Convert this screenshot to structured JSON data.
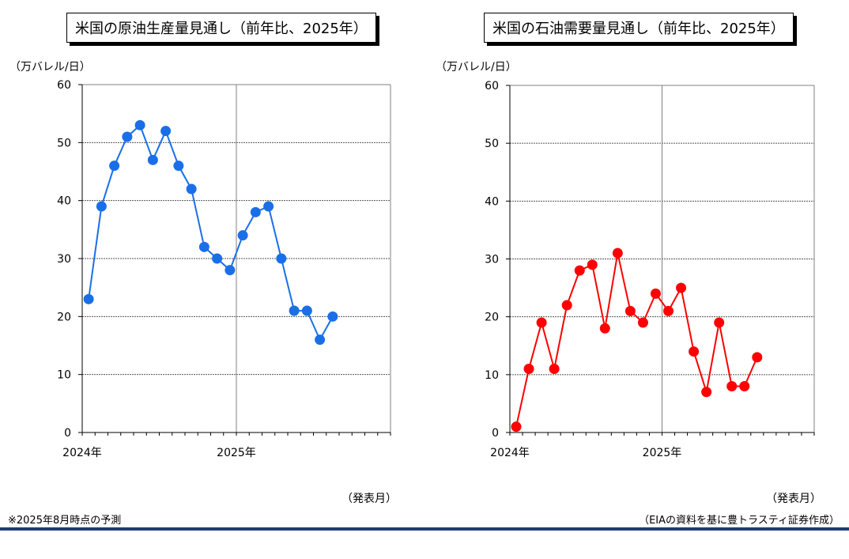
{
  "charts": [
    {
      "title": "米国の原油生産量見通し（前年比、2025年）",
      "unit": "（万バレル/日）",
      "publish_label": "（発表月）"
    },
    {
      "title": "米国の石油需要量見通し（前年比、2025年）",
      "unit": "（万バレル/日）",
      "publish_label": "（発表月）"
    }
  ],
  "footer": {
    "note": "※2025年8月時点の予測",
    "source": "（EIAの資料を基に豊トラスティ証券作成）"
  },
  "colors": {
    "series1": "#1a6fe8",
    "series2": "#ff0000",
    "rule": "#1f3a78"
  },
  "chart_data": [
    {
      "type": "line",
      "title": "米国の原油生産量見通し（前年比、2025年）",
      "ylabel": "（万バレル/日）",
      "xlabel": "（発表月）",
      "ylim": [
        0,
        60
      ],
      "yticks": [
        0,
        10,
        20,
        30,
        40,
        50,
        60
      ],
      "xtick_labels": [
        "2024年",
        "2025年"
      ],
      "x_months_total": 24,
      "grid": true,
      "series": [
        {
          "values": [
            23,
            39,
            46,
            51,
            53,
            47,
            52,
            46,
            42,
            32,
            30,
            28,
            34,
            38,
            39,
            30,
            21,
            21,
            16,
            20
          ]
        }
      ]
    },
    {
      "type": "line",
      "title": "米国の石油需要量見通し（前年比、2025年）",
      "ylabel": "（万バレル/日）",
      "xlabel": "（発表月）",
      "ylim": [
        0,
        60
      ],
      "yticks": [
        0,
        10,
        20,
        30,
        40,
        50,
        60
      ],
      "xtick_labels": [
        "2024年",
        "2025年"
      ],
      "x_months_total": 24,
      "grid": true,
      "series": [
        {
          "values": [
            1,
            11,
            19,
            11,
            22,
            28,
            29,
            18,
            31,
            21,
            19,
            24,
            21,
            25,
            14,
            7,
            19,
            8,
            8,
            13
          ]
        }
      ]
    }
  ]
}
